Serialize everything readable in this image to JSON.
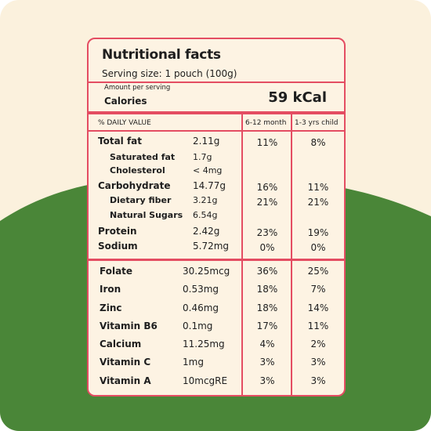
{
  "title": "Nutritional facts",
  "serving_size": "Serving size: 1 pouch (100g)",
  "amount_per_serving": "Amount per serving",
  "calories_label": "Calories",
  "calories_value": "59 kCal",
  "columns": {
    "daily_value": "% DAILY VALUE",
    "infant": "6-12 month",
    "child": "1-3 yrs child"
  },
  "macros": [
    {
      "name": "Total fat",
      "amount": "2.11g",
      "infant": "11%",
      "child": "8%",
      "sub": false
    },
    {
      "name": "Saturated fat",
      "amount": "1.7g",
      "infant": "",
      "child": "",
      "sub": true
    },
    {
      "name": "Cholesterol",
      "amount": "< 4mg",
      "infant": "",
      "child": "",
      "sub": true
    },
    {
      "name": "Carbohydrate",
      "amount": "14.77g",
      "infant": "16%",
      "child": "11%",
      "sub": false
    },
    {
      "name": "Dietary fiber",
      "amount": "3.21g",
      "infant": "21%",
      "child": "21%",
      "sub": true
    },
    {
      "name": "Natural Sugars",
      "amount": "6.54g",
      "infant": "",
      "child": "",
      "sub": true
    },
    {
      "name": "Protein",
      "amount": "2.42g",
      "infant": "23%",
      "child": "19%",
      "sub": false
    },
    {
      "name": "Sodium",
      "amount": "5.72mg",
      "infant": "0%",
      "child": "0%",
      "sub": false
    }
  ],
  "micros": [
    {
      "name": "Folate",
      "amount": "30.25mcg",
      "infant": "36%",
      "child": "25%"
    },
    {
      "name": "Iron",
      "amount": "0.53mg",
      "infant": "18%",
      "child": "7%"
    },
    {
      "name": "Zinc",
      "amount": "0.46mg",
      "infant": "18%",
      "child": "14%"
    },
    {
      "name": "Vitamin B6",
      "amount": "0.1mg",
      "infant": "17%",
      "child": "11%"
    },
    {
      "name": "Calcium",
      "amount": "11.25mg",
      "infant": "4%",
      "child": "2%"
    },
    {
      "name": "Vitamin C",
      "amount": "1mg",
      "infant": "3%",
      "child": "3%"
    },
    {
      "name": "Vitamin A",
      "amount": "10mcgRE",
      "infant": "3%",
      "child": "3%"
    }
  ],
  "colors": {
    "accent": "#e44d62",
    "card_background": "#fdf3e3",
    "page_background": "#fbf1dd",
    "green": "#4a8638"
  }
}
